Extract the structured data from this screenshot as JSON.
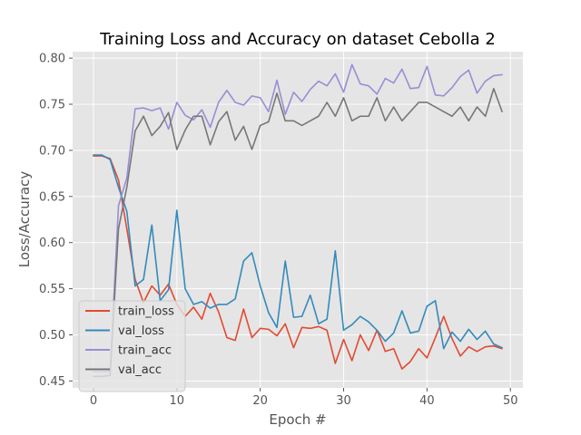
{
  "chart_data": {
    "type": "line",
    "title": "Training Loss and Accuracy on dataset Cebolla 2",
    "xlabel": "Epoch #",
    "ylabel": "Loss/Accuracy",
    "xlim": [
      -2.5,
      51.5
    ],
    "ylim": [
      0.4425,
      0.807
    ],
    "xticks": [
      0,
      10,
      20,
      30,
      40,
      50
    ],
    "yticks": [
      0.45,
      0.5,
      0.55,
      0.6,
      0.65,
      0.7,
      0.75,
      0.8
    ],
    "ytick_labels": [
      "0.45",
      "0.50",
      "0.55",
      "0.60",
      "0.65",
      "0.70",
      "0.75",
      "0.80"
    ],
    "grid": true,
    "legend_position": "lower-left",
    "x": [
      0,
      1,
      2,
      3,
      4,
      5,
      6,
      7,
      8,
      9,
      10,
      11,
      12,
      13,
      14,
      15,
      16,
      17,
      18,
      19,
      20,
      21,
      22,
      23,
      24,
      25,
      26,
      27,
      28,
      29,
      30,
      31,
      32,
      33,
      34,
      35,
      36,
      37,
      38,
      39,
      40,
      41,
      42,
      43,
      44,
      45,
      46,
      47,
      48,
      49
    ],
    "series": [
      {
        "name": "train_loss",
        "color": "#E24A33",
        "values": [
          0.694,
          0.694,
          0.691,
          0.668,
          0.615,
          0.56,
          0.535,
          0.553,
          0.543,
          0.555,
          0.533,
          0.52,
          0.53,
          0.517,
          0.545,
          0.525,
          0.497,
          0.494,
          0.528,
          0.497,
          0.507,
          0.506,
          0.499,
          0.512,
          0.486,
          0.508,
          0.507,
          0.509,
          0.505,
          0.469,
          0.495,
          0.472,
          0.5,
          0.483,
          0.505,
          0.482,
          0.485,
          0.463,
          0.471,
          0.485,
          0.475,
          0.497,
          0.52,
          0.496,
          0.477,
          0.487,
          0.482,
          0.487,
          0.488,
          0.485
        ]
      },
      {
        "name": "val_loss",
        "color": "#348ABD",
        "values": [
          0.695,
          0.695,
          0.69,
          0.66,
          0.634,
          0.553,
          0.56,
          0.619,
          0.537,
          0.549,
          0.635,
          0.55,
          0.533,
          0.536,
          0.529,
          0.533,
          0.533,
          0.539,
          0.58,
          0.589,
          0.553,
          0.524,
          0.508,
          0.58,
          0.519,
          0.52,
          0.543,
          0.512,
          0.517,
          0.591,
          0.505,
          0.511,
          0.52,
          0.514,
          0.505,
          0.493,
          0.502,
          0.526,
          0.502,
          0.504,
          0.531,
          0.537,
          0.485,
          0.503,
          0.493,
          0.506,
          0.495,
          0.504,
          0.49,
          0.486
        ]
      },
      {
        "name": "train_acc",
        "color": "#988ED5",
        "values": [
          0.46,
          0.46,
          0.46,
          0.64,
          0.67,
          0.745,
          0.746,
          0.743,
          0.746,
          0.723,
          0.752,
          0.738,
          0.733,
          0.744,
          0.725,
          0.752,
          0.765,
          0.752,
          0.749,
          0.759,
          0.757,
          0.742,
          0.776,
          0.739,
          0.763,
          0.753,
          0.766,
          0.775,
          0.77,
          0.783,
          0.763,
          0.793,
          0.772,
          0.77,
          0.761,
          0.778,
          0.773,
          0.788,
          0.767,
          0.768,
          0.791,
          0.76,
          0.759,
          0.768,
          0.78,
          0.787,
          0.762,
          0.775,
          0.781,
          0.782
        ]
      },
      {
        "name": "val_acc",
        "color": "#777777",
        "values": [
          0.455,
          0.455,
          0.456,
          0.615,
          0.66,
          0.721,
          0.737,
          0.716,
          0.726,
          0.741,
          0.701,
          0.722,
          0.737,
          0.737,
          0.706,
          0.731,
          0.742,
          0.711,
          0.726,
          0.701,
          0.727,
          0.731,
          0.762,
          0.732,
          0.732,
          0.727,
          0.732,
          0.737,
          0.752,
          0.737,
          0.757,
          0.732,
          0.737,
          0.737,
          0.757,
          0.732,
          0.747,
          0.732,
          0.742,
          0.752,
          0.752,
          0.747,
          0.742,
          0.737,
          0.747,
          0.732,
          0.747,
          0.737,
          0.767,
          0.742
        ]
      }
    ]
  }
}
